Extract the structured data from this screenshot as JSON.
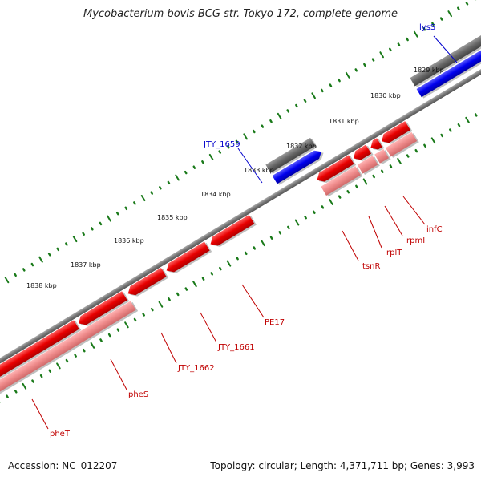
{
  "title": "Mycobacterium bovis BCG str. Tokyo 172, complete genome",
  "footer": {
    "accession": "Accession: NC_012207",
    "stats": "Topology: circular; Length: 4,371,711 bp; Genes: 3,993"
  },
  "colors": {
    "background": "#ffffff",
    "backbone": "#777777",
    "tick_marks": "#1a7a1a",
    "gene_plus_strand": "#0000ee",
    "gene_minus_strand": "#e00000",
    "gene_minus_strand_light": "#ee8888",
    "gene_context": "#666666",
    "label_plus": "#0000cc",
    "label_minus": "#c00000"
  },
  "kbp_labels": [
    "1829 kbp",
    "1830 kbp",
    "1831 kbp",
    "1832 kbp",
    "1833 kbp",
    "1834 kbp",
    "1835 kbp",
    "1836 kbp",
    "1837 kbp",
    "1838 kbp"
  ],
  "gene_labels": {
    "plus": [
      "lysS",
      "JTY_1659"
    ],
    "minus": [
      "infC",
      "rpmI",
      "rplT",
      "tsnR",
      "PE17",
      "JTY_1661",
      "JTY_1662",
      "pheS",
      "pheT"
    ]
  }
}
